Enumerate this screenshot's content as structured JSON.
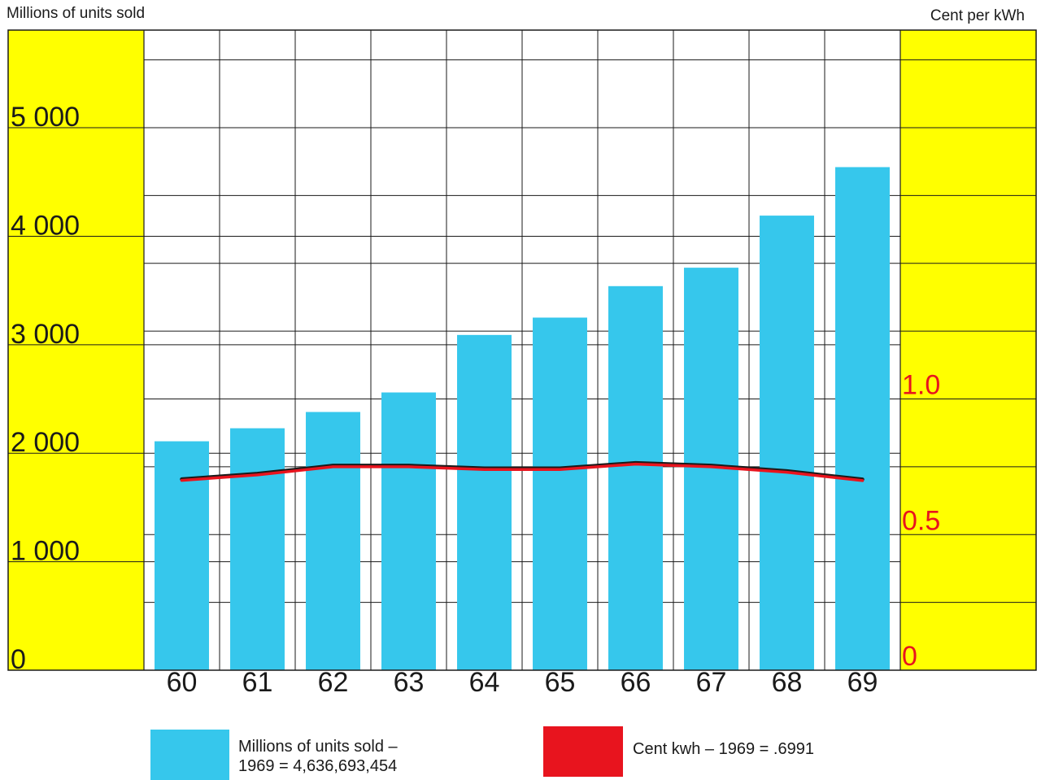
{
  "chart_data": {
    "type": "bar",
    "title": "",
    "left_axis_label": "Millions of units sold",
    "right_axis_label": "Cent per kWh",
    "categories": [
      "60",
      "61",
      "62",
      "63",
      "64",
      "65",
      "66",
      "67",
      "68",
      "69"
    ],
    "y_left_ticks": [
      "0",
      "1 000",
      "2 000",
      "3 000",
      "4 000",
      "5 000"
    ],
    "y_left_range": [
      0,
      5900
    ],
    "y_right_ticks": [
      "0",
      "0.5",
      "1.0"
    ],
    "y_right_range": [
      0,
      2.36
    ],
    "grid": true,
    "series": [
      {
        "type": "bar",
        "axis": "left",
        "values": [
          2110,
          2230,
          2380,
          2560,
          3090,
          3250,
          3540,
          3710,
          4190,
          4637
        ]
      },
      {
        "type": "line",
        "axis": "right",
        "values": [
          0.7,
          0.72,
          0.75,
          0.75,
          0.74,
          0.74,
          0.76,
          0.75,
          0.73,
          0.6991
        ]
      }
    ],
    "legend": [
      {
        "line1": "Millions of units sold –",
        "line2": "1969 = 4,636,693,454"
      },
      {
        "line1": "Cent kwh – 1969 = .6991"
      }
    ]
  },
  "colors": {
    "yellow_panel": "#ffff00",
    "bar": "#36c7ec",
    "price_line": "#e8141e",
    "price_line_shadow": "#1a1a1a",
    "grid": "#1a1a1a",
    "right_tick_text": "#e8141e"
  }
}
